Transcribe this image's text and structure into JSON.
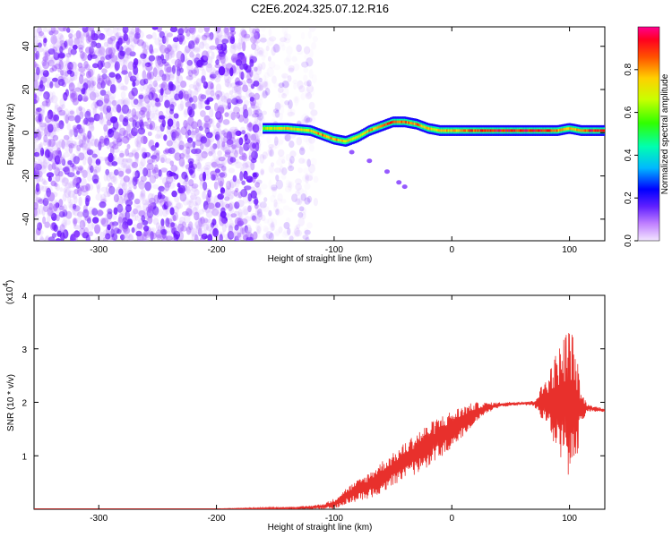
{
  "title": "C2E6.2024.325.07.12.R16",
  "chart_data": [
    {
      "type": "heatmap",
      "title": "",
      "xlabel": "Height of straight line (km)",
      "ylabel": "Frequency (Hz)",
      "xlim": [
        -355,
        130
      ],
      "ylim": [
        -50,
        49
      ],
      "x_ticks": [
        -300,
        -200,
        -100,
        0,
        100
      ],
      "y_ticks": [
        -40,
        -20,
        0,
        20,
        40
      ],
      "colorbar": {
        "label": "Normalized spectral amplitude",
        "range": [
          0,
          1
        ],
        "ticks": [
          0.0,
          0.2,
          0.4,
          0.6,
          0.8
        ],
        "colormap": [
          "#f0d0ff",
          "#c080ff",
          "#6020ff",
          "#0000ff",
          "#00c0ff",
          "#00ffa0",
          "#40ff00",
          "#c0ff00",
          "#ffd000",
          "#ff6000",
          "#ff0000",
          "#ff00a0"
        ]
      },
      "noise_region": {
        "x": [
          -355,
          -160
        ],
        "note_color": "#8040ff"
      },
      "signal_track": {
        "x": [
          -160,
          -140,
          -120,
          -110,
          -100,
          -90,
          -80,
          -70,
          -60,
          -50,
          -40,
          -30,
          -20,
          -10,
          0,
          10,
          20,
          40,
          60,
          80,
          90,
          100,
          110,
          120,
          130
        ],
        "freq": [
          2,
          2,
          1,
          -1,
          -3,
          -4,
          -2,
          1,
          3,
          5,
          5,
          4,
          2,
          1,
          1,
          1,
          1,
          1,
          1,
          1,
          1,
          2,
          1,
          1,
          1
        ],
        "amp": [
          0.6,
          0.7,
          0.7,
          0.8,
          0.75,
          0.7,
          0.7,
          0.75,
          0.8,
          0.85,
          0.8,
          0.8,
          0.7,
          0.7,
          0.75,
          0.8,
          0.85,
          0.9,
          0.9,
          0.9,
          0.8,
          0.7,
          0.8,
          0.9,
          0.9
        ]
      },
      "secondary_branch": {
        "x": [
          -100,
          -85,
          -70,
          -55,
          -45,
          -40
        ],
        "freq": [
          -4,
          -9,
          -13,
          -18,
          -23,
          -25
        ]
      }
    },
    {
      "type": "line",
      "title": "",
      "xlabel": "Height of straight line (km)",
      "ylabel": "SNR (10 * v/v)",
      "y_multiplier": "(x10",
      "y_multiplier_exp": "4",
      "y_multiplier_close": ")",
      "xlim": [
        -355,
        130
      ],
      "ylim": [
        0,
        4
      ],
      "x_ticks": [
        -300,
        -200,
        -100,
        0,
        100
      ],
      "y_ticks": [
        1,
        2,
        3,
        4
      ],
      "series": [
        {
          "color": "#e8302c",
          "x": [
            -355,
            -300,
            -200,
            -130,
            -110,
            -100,
            -90,
            -80,
            -70,
            -60,
            -50,
            -40,
            -30,
            -20,
            -10,
            0,
            10,
            20,
            30,
            40,
            50,
            60,
            70,
            80,
            90,
            95,
            100,
            105,
            110,
            115,
            120,
            130
          ],
          "y": [
            0.01,
            0.01,
            0.01,
            0.02,
            0.05,
            0.1,
            0.25,
            0.35,
            0.45,
            0.6,
            0.75,
            0.9,
            1.05,
            1.2,
            1.35,
            1.5,
            1.65,
            1.8,
            1.9,
            1.95,
            1.97,
            1.98,
            1.98,
            2.0,
            2.0,
            1.95,
            2.0,
            1.9,
            1.9,
            1.9,
            1.88,
            1.85
          ],
          "spread": [
            0,
            0,
            0,
            0.03,
            0.05,
            0.1,
            0.15,
            0.2,
            0.25,
            0.3,
            0.3,
            0.35,
            0.4,
            0.4,
            0.4,
            0.35,
            0.3,
            0.2,
            0.1,
            0.05,
            0.04,
            0.04,
            0.05,
            0.5,
            1.0,
            1.3,
            1.5,
            1.2,
            0.3,
            0.08,
            0.05,
            0.05
          ]
        }
      ]
    }
  ]
}
